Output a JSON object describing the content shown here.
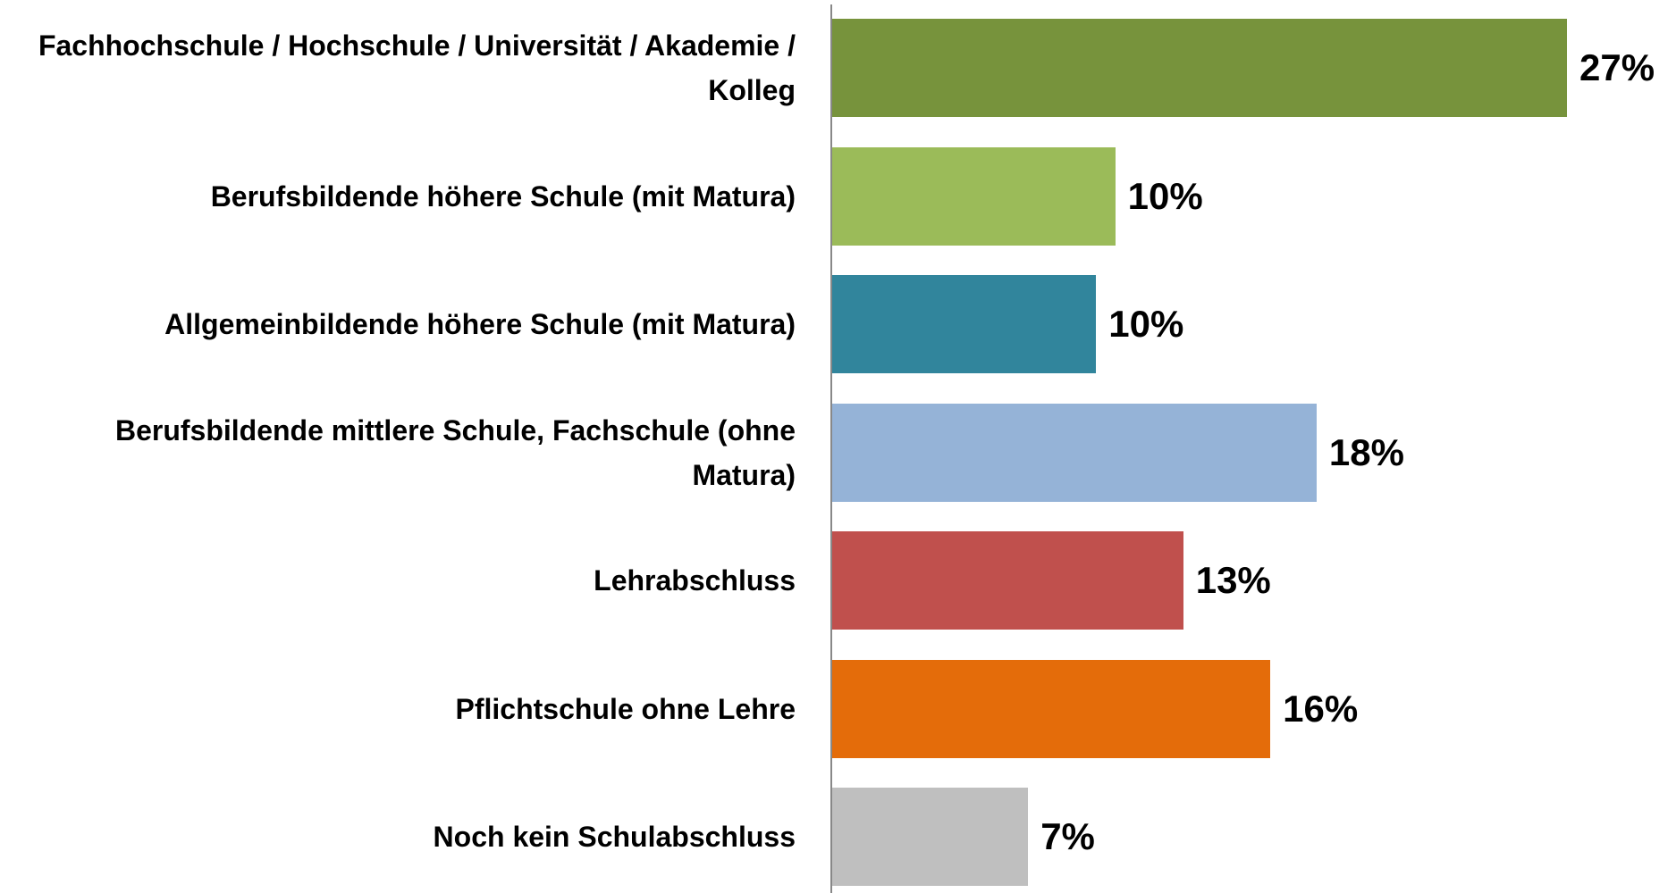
{
  "chart_data": {
    "type": "bar",
    "orientation": "horizontal",
    "categories": [
      "Fachhochschule / Hochschule / Universität / Akademie / Kolleg",
      "Berufsbildende höhere Schule (mit Matura)",
      "Allgemeinbildende höhere Schule (mit Matura)",
      "Berufsbildende mittlere Schule, Fachschule (ohne Matura)",
      "Lehrabschluss",
      "Pflichtschule ohne Lehre",
      "Noch kein Schulabschluss"
    ],
    "values": [
      27,
      10.4,
      9.7,
      17.8,
      12.9,
      16.1,
      7.2
    ],
    "value_labels": [
      "27%",
      "10%",
      "10%",
      "18%",
      "13%",
      "16%",
      "7%"
    ],
    "colors": [
      "#77933c",
      "#9bbb59",
      "#31859c",
      "#95b3d7",
      "#c0504d",
      "#e46c0a",
      "#bfbfbf"
    ]
  }
}
